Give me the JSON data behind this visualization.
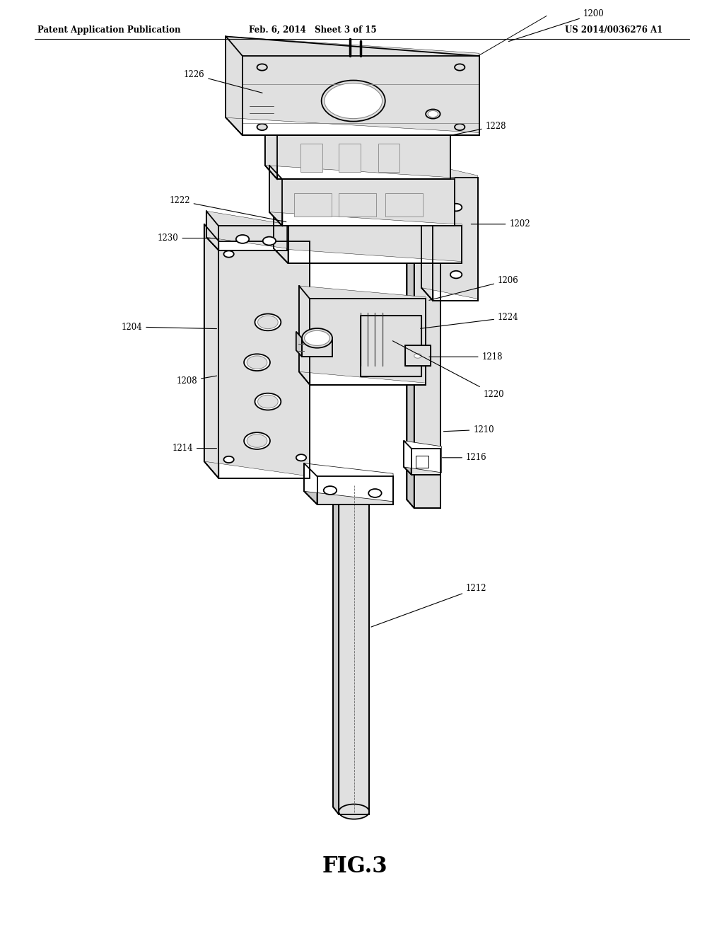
{
  "header_left": "Patent Application Publication",
  "header_mid": "Feb. 6, 2014   Sheet 3 of 15",
  "header_right": "US 2014/0036276 A1",
  "bg_color": "#ffffff",
  "title": "FIG.3",
  "labels": [
    [
      "1200",
      820,
      985,
      700,
      955
    ],
    [
      "1226",
      268,
      920,
      365,
      900
    ],
    [
      "1228",
      685,
      865,
      622,
      855
    ],
    [
      "1222",
      248,
      785,
      398,
      762
    ],
    [
      "1202",
      718,
      760,
      648,
      760
    ],
    [
      "1230",
      232,
      745,
      302,
      745
    ],
    [
      "1206",
      702,
      700,
      590,
      678
    ],
    [
      "1204",
      182,
      650,
      302,
      648
    ],
    [
      "1224",
      702,
      660,
      578,
      648
    ],
    [
      "1218",
      680,
      618,
      590,
      618
    ],
    [
      "1220",
      682,
      578,
      540,
      636
    ],
    [
      "1208",
      258,
      592,
      302,
      598
    ],
    [
      "1210",
      668,
      540,
      610,
      538
    ],
    [
      "1214",
      252,
      520,
      302,
      520
    ],
    [
      "1216",
      658,
      510,
      608,
      510
    ],
    [
      "1212",
      658,
      370,
      510,
      328
    ]
  ]
}
